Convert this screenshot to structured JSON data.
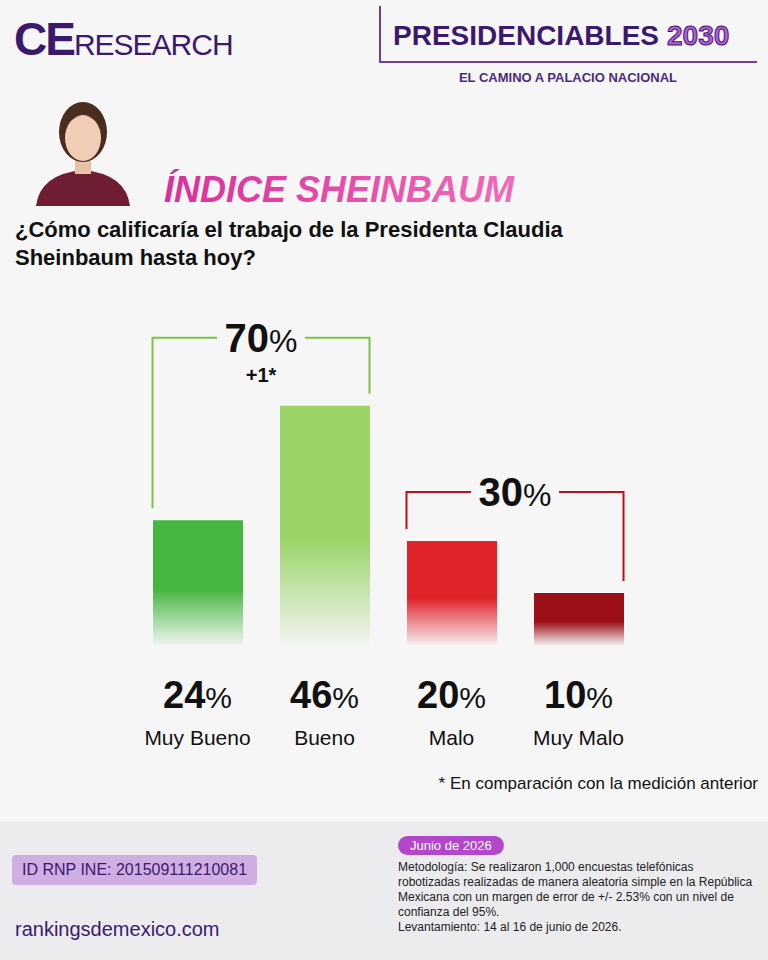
{
  "header": {
    "logo_strong": "CE",
    "logo_light": "RESEARCH",
    "title": "PRESIDENCIABLES",
    "title_year": "2030",
    "subtitle": "EL CAMINO A PALACIO NACIONAL",
    "index_title": "ÍNDICE SHEINBAUM"
  },
  "chart_data": {
    "type": "bar",
    "title": "¿Cómo calificaría el trabajo de la Presidenta Claudia Sheinbaum hasta hoy?",
    "categories": [
      "Muy Bueno",
      "Bueno",
      "Malo",
      "Muy Malo"
    ],
    "values": [
      24,
      46,
      20,
      10
    ],
    "value_labels": [
      "24%",
      "46%",
      "20%",
      "10%"
    ],
    "colors": [
      "#45b63f",
      "#9ad366",
      "#e1232b",
      "#9c0f18"
    ],
    "ylim": [
      0,
      60
    ],
    "grid": false,
    "data_labels": true,
    "tick_labels": "x",
    "annotations": [
      {
        "text": "70%",
        "note": "+1*",
        "categories": [
          "Muy Bueno",
          "Bueno"
        ],
        "color": "#7cc24a"
      },
      {
        "text": "30%",
        "categories": [
          "Malo",
          "Muy Malo"
        ],
        "color": "#b5121b"
      }
    ],
    "footnote": "* En comparación con la medición anterior"
  },
  "footer": {
    "date": "Junio de 2026",
    "methodology": "Metodología: Se realizaron 1,000 encuestas telefónicas robotizadas realizadas de manera aleatoria simple en la República Mexicana con un margen de error de +/- 2.53% con un nivel de confianza del 95%.",
    "fieldwork": "Levantamiento: 14 al 16 de junio de 2026.",
    "registry": "ID RNP INE: 201509111210081",
    "website": "rankingsdemexico.com"
  }
}
